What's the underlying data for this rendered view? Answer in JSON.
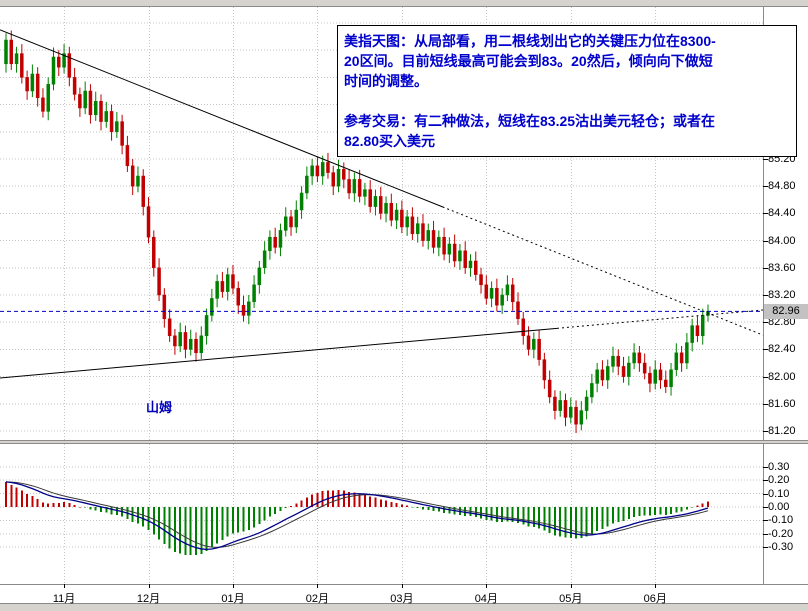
{
  "annotation_box": {
    "text_color": "#0000cc",
    "lines": [
      "美指天图：从局部看，用二根线划出它的关键压力位在8300-",
      "20区间。目前短线最高可能会到83。20然后，倾向向下做短",
      "时间的调整。",
      "",
      "参考交易：有二种做法，短线在83.25沽出美元轻仓；或者在",
      "82.80买入美元"
    ]
  },
  "watermark": {
    "text": "山姆",
    "color": "#0000bb"
  },
  "chart_data": {
    "type": "candlestick",
    "title": "",
    "bull_color": "#008000",
    "bear_color": "#c00000",
    "grid_color": "#c6c6c6",
    "price_axis": {
      "ticks": [
        "85.20",
        "84.80",
        "84.40",
        "84.00",
        "83.60",
        "83.20",
        "82.80",
        "82.40",
        "82.00",
        "81.60",
        "81.20"
      ],
      "tick_step": 0.4,
      "current_price": "82.96"
    },
    "time_axis": {
      "labels": [
        "11月",
        "12月",
        "01月",
        "02月",
        "03月",
        "04月",
        "05月",
        "06月"
      ],
      "tick_indices": [
        11,
        27,
        43,
        59,
        75,
        91,
        107,
        123
      ]
    },
    "overlays": [
      {
        "id": "resistance-trendline",
        "kind": "trendline",
        "color": "#000000",
        "price_start": 87.1,
        "price_end": 82.61,
        "dotted_from_frac": 0.58
      },
      {
        "id": "support-trendline",
        "kind": "trendline",
        "color": "#000000",
        "price_start": 81.98,
        "price_end": 82.98,
        "dotted_from_frac": 0.73
      },
      {
        "id": "current-price-line",
        "kind": "hline",
        "color": "#0000c8",
        "price": 82.96
      }
    ],
    "indicator": {
      "name": "MACD",
      "ticks": [
        "0.30",
        "0.20",
        "0.10",
        "0.00",
        "-0.10",
        "-0.20",
        "-0.30"
      ],
      "up_color": "#c00000",
      "down_color": "#008000",
      "line_colors": [
        "#00008b",
        "#383838"
      ],
      "fast": 12,
      "slow": 26,
      "signal": 9
    },
    "candles": [
      [
        86.6,
        87.05,
        86.47,
        86.95
      ],
      [
        86.95,
        87.09,
        86.51,
        86.6
      ],
      [
        86.6,
        86.85,
        86.47,
        86.75
      ],
      [
        86.75,
        86.89,
        86.31,
        86.4
      ],
      [
        86.4,
        86.5,
        86.07,
        86.2
      ],
      [
        86.2,
        86.59,
        86.11,
        86.45
      ],
      [
        86.45,
        86.55,
        85.97,
        86.1
      ],
      [
        86.1,
        86.24,
        85.81,
        85.9
      ],
      [
        85.9,
        86.4,
        85.77,
        86.3
      ],
      [
        86.3,
        86.84,
        86.21,
        86.7
      ],
      [
        86.7,
        86.8,
        86.42,
        86.55
      ],
      [
        86.55,
        86.89,
        86.46,
        86.75
      ],
      [
        86.75,
        86.85,
        86.27,
        86.4
      ],
      [
        86.4,
        86.54,
        86.06,
        86.15
      ],
      [
        86.15,
        86.25,
        85.82,
        85.95
      ],
      [
        85.95,
        86.34,
        85.86,
        86.2
      ],
      [
        86.2,
        86.3,
        85.72,
        85.85
      ],
      [
        85.85,
        86.19,
        85.76,
        86.05
      ],
      [
        86.05,
        86.15,
        85.62,
        85.75
      ],
      [
        85.75,
        86.04,
        85.66,
        85.9
      ],
      [
        85.9,
        86.0,
        85.47,
        85.6
      ],
      [
        85.6,
        85.89,
        85.51,
        85.75
      ],
      [
        85.75,
        85.85,
        85.27,
        85.4
      ],
      [
        85.4,
        85.54,
        85.01,
        85.1
      ],
      [
        85.1,
        85.2,
        84.67,
        84.8
      ],
      [
        84.8,
        85.09,
        84.71,
        84.95
      ],
      [
        84.95,
        85.05,
        84.37,
        84.5
      ],
      [
        84.5,
        84.64,
        83.96,
        84.05
      ],
      [
        84.05,
        84.15,
        83.47,
        83.6
      ],
      [
        83.6,
        83.74,
        83.11,
        83.2
      ],
      [
        83.2,
        83.3,
        82.72,
        82.85
      ],
      [
        82.85,
        82.99,
        82.51,
        82.6
      ],
      [
        82.6,
        82.7,
        82.32,
        82.45
      ],
      [
        82.45,
        82.79,
        82.36,
        82.65
      ],
      [
        82.65,
        82.75,
        82.27,
        82.4
      ],
      [
        82.4,
        82.69,
        82.31,
        82.55
      ],
      [
        82.55,
        82.65,
        82.22,
        82.35
      ],
      [
        82.35,
        82.74,
        82.26,
        82.6
      ],
      [
        82.6,
        83.0,
        82.47,
        82.9
      ],
      [
        82.9,
        83.29,
        82.81,
        83.15
      ],
      [
        83.15,
        83.5,
        83.02,
        83.4
      ],
      [
        83.4,
        83.54,
        83.16,
        83.25
      ],
      [
        83.25,
        83.6,
        83.12,
        83.5
      ],
      [
        83.5,
        83.64,
        83.21,
        83.3
      ],
      [
        83.3,
        83.4,
        82.92,
        83.05
      ],
      [
        83.05,
        83.19,
        82.81,
        82.9
      ],
      [
        82.9,
        83.2,
        82.77,
        83.1
      ],
      [
        83.1,
        83.49,
        83.01,
        83.35
      ],
      [
        83.35,
        83.7,
        83.22,
        83.6
      ],
      [
        83.6,
        83.99,
        83.51,
        83.85
      ],
      [
        83.85,
        84.15,
        83.72,
        84.05
      ],
      [
        84.05,
        84.19,
        83.81,
        83.9
      ],
      [
        83.9,
        84.25,
        83.77,
        84.15
      ],
      [
        84.15,
        84.49,
        84.06,
        84.35
      ],
      [
        84.35,
        84.45,
        84.07,
        84.2
      ],
      [
        84.2,
        84.59,
        84.11,
        84.45
      ],
      [
        84.45,
        84.8,
        84.32,
        84.7
      ],
      [
        84.7,
        85.09,
        84.61,
        84.95
      ],
      [
        84.95,
        85.2,
        84.82,
        85.1
      ],
      [
        85.1,
        85.24,
        84.86,
        84.95
      ],
      [
        84.95,
        85.25,
        84.82,
        85.15
      ],
      [
        85.15,
        85.29,
        84.91,
        85.0
      ],
      [
        85.0,
        85.1,
        84.67,
        84.8
      ],
      [
        84.8,
        85.19,
        84.71,
        85.05
      ],
      [
        85.05,
        85.15,
        84.77,
        84.9
      ],
      [
        84.9,
        85.04,
        84.61,
        84.7
      ],
      [
        84.7,
        85.0,
        84.57,
        84.9
      ],
      [
        84.9,
        85.04,
        84.56,
        84.65
      ],
      [
        84.65,
        84.85,
        84.52,
        84.75
      ],
      [
        84.75,
        84.89,
        84.41,
        84.5
      ],
      [
        84.5,
        84.75,
        84.37,
        84.65
      ],
      [
        84.65,
        84.79,
        84.31,
        84.4
      ],
      [
        84.4,
        84.65,
        84.27,
        84.55
      ],
      [
        84.55,
        84.69,
        84.21,
        84.3
      ],
      [
        84.3,
        84.55,
        84.17,
        84.45
      ],
      [
        84.45,
        84.59,
        84.11,
        84.2
      ],
      [
        84.2,
        84.45,
        84.07,
        84.35
      ],
      [
        84.35,
        84.49,
        84.01,
        84.1
      ],
      [
        84.1,
        84.35,
        83.97,
        84.25
      ],
      [
        84.25,
        84.39,
        83.91,
        84.0
      ],
      [
        84.0,
        84.25,
        83.87,
        84.15
      ],
      [
        84.15,
        84.29,
        83.81,
        83.9
      ],
      [
        83.9,
        84.15,
        83.77,
        84.05
      ],
      [
        84.05,
        84.19,
        83.71,
        83.8
      ],
      [
        83.8,
        84.05,
        83.67,
        83.95
      ],
      [
        83.95,
        84.09,
        83.61,
        83.7
      ],
      [
        83.7,
        83.95,
        83.57,
        83.85
      ],
      [
        83.85,
        83.99,
        83.51,
        83.6
      ],
      [
        83.6,
        83.8,
        83.47,
        83.7
      ],
      [
        83.7,
        83.84,
        83.41,
        83.5
      ],
      [
        83.5,
        83.6,
        83.22,
        83.35
      ],
      [
        83.35,
        83.49,
        83.06,
        83.15
      ],
      [
        83.15,
        83.4,
        83.02,
        83.3
      ],
      [
        83.3,
        83.44,
        82.96,
        83.05
      ],
      [
        83.05,
        83.3,
        82.92,
        83.2
      ],
      [
        83.2,
        83.49,
        83.11,
        83.35
      ],
      [
        83.35,
        83.45,
        82.97,
        83.1
      ],
      [
        83.1,
        83.24,
        82.76,
        82.85
      ],
      [
        82.85,
        82.95,
        82.47,
        82.6
      ],
      [
        82.6,
        82.74,
        82.31,
        82.4
      ],
      [
        82.4,
        82.65,
        82.27,
        82.55
      ],
      [
        82.55,
        82.69,
        82.16,
        82.25
      ],
      [
        82.25,
        82.35,
        81.82,
        81.95
      ],
      [
        81.95,
        82.09,
        81.61,
        81.7
      ],
      [
        81.7,
        81.8,
        81.37,
        81.5
      ],
      [
        81.5,
        81.79,
        81.41,
        81.65
      ],
      [
        81.65,
        81.75,
        81.27,
        81.4
      ],
      [
        81.4,
        81.69,
        81.31,
        81.55
      ],
      [
        81.55,
        81.65,
        81.17,
        81.3
      ],
      [
        81.3,
        81.64,
        81.21,
        81.5
      ],
      [
        81.5,
        81.8,
        81.37,
        81.7
      ],
      [
        81.7,
        82.04,
        81.61,
        81.9
      ],
      [
        81.9,
        82.2,
        81.77,
        82.1
      ],
      [
        82.1,
        82.24,
        81.86,
        81.95
      ],
      [
        81.95,
        82.25,
        81.82,
        82.15
      ],
      [
        82.15,
        82.44,
        82.06,
        82.3
      ],
      [
        82.3,
        82.4,
        82.02,
        82.15
      ],
      [
        82.15,
        82.29,
        81.91,
        82.0
      ],
      [
        82.0,
        82.3,
        81.87,
        82.2
      ],
      [
        82.2,
        82.49,
        82.11,
        82.35
      ],
      [
        82.35,
        82.45,
        82.07,
        82.2
      ],
      [
        82.2,
        82.34,
        81.96,
        82.05
      ],
      [
        82.05,
        82.15,
        81.77,
        81.9
      ],
      [
        81.9,
        82.24,
        81.81,
        82.1
      ],
      [
        82.1,
        82.2,
        81.82,
        81.95
      ],
      [
        81.95,
        82.09,
        81.76,
        81.85
      ],
      [
        81.85,
        82.2,
        81.72,
        82.1
      ],
      [
        82.1,
        82.49,
        82.01,
        82.35
      ],
      [
        82.35,
        82.45,
        82.07,
        82.2
      ],
      [
        82.2,
        82.64,
        82.11,
        82.5
      ],
      [
        82.5,
        82.85,
        82.37,
        82.75
      ],
      [
        82.75,
        82.89,
        82.51,
        82.6
      ],
      [
        82.6,
        83.0,
        82.47,
        82.9
      ],
      [
        82.9,
        83.06,
        82.81,
        82.96
      ]
    ]
  }
}
